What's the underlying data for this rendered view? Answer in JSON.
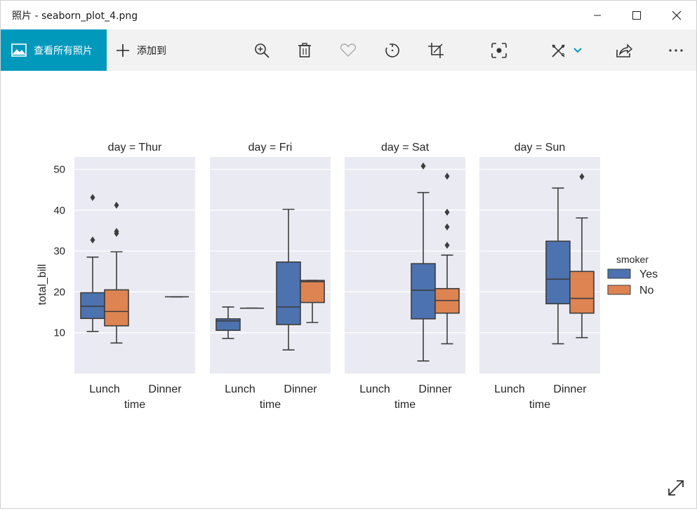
{
  "window": {
    "title": "照片 - seaborn_plot_4.png"
  },
  "titlebar_buttons": {
    "minimize": "minimize-icon",
    "maximize": "maximize-icon",
    "close": "close-icon"
  },
  "toolbar": {
    "view_all_label": "查看所有照片",
    "add_to_label": "添加到",
    "icons": [
      "zoom-in-icon",
      "delete-icon",
      "heart-icon",
      "rotate-icon",
      "crop-icon",
      "focus-icon",
      "edit-draw-icon",
      "share-icon",
      "more-icon"
    ]
  },
  "colors": {
    "accent": "#0099bc",
    "yes": "#4c72b0",
    "no": "#dd8452",
    "panel_bg": "#eaeaf2",
    "box_line": "#3d3d3d"
  },
  "chart_data": {
    "type": "boxplot",
    "facets": [
      "day = Thur",
      "day = Fri",
      "day = Sat",
      "day = Sun"
    ],
    "x_categories": [
      "Lunch",
      "Dinner"
    ],
    "xlabel": "time",
    "ylabel": "total_bill",
    "yticks": [
      10,
      20,
      30,
      40,
      50
    ],
    "ylim": [
      0,
      53
    ],
    "legend": {
      "title": "smoker",
      "entries": [
        "Yes",
        "No"
      ],
      "placement": "right"
    },
    "boxes": [
      {
        "facet": 0,
        "time": "Lunch",
        "smoker": "Yes",
        "whisker_low": 10.3,
        "q1": 13.5,
        "median": 16.5,
        "q3": 19.8,
        "whisker_high": 28.5,
        "outliers": [
          32.7,
          43.1
        ]
      },
      {
        "facet": 0,
        "time": "Lunch",
        "smoker": "No",
        "whisker_low": 7.5,
        "q1": 11.7,
        "median": 15.2,
        "q3": 20.5,
        "whisker_high": 29.8,
        "outliers": [
          34.3,
          34.8,
          41.2
        ]
      },
      {
        "facet": 0,
        "time": "Dinner",
        "smoker": "No",
        "whisker_low": 18.8,
        "q1": 18.8,
        "median": 18.8,
        "q3": 18.8,
        "whisker_high": 18.8,
        "outliers": []
      },
      {
        "facet": 1,
        "time": "Lunch",
        "smoker": "Yes",
        "whisker_low": 8.6,
        "q1": 10.6,
        "median": 12.9,
        "q3": 13.4,
        "whisker_high": 16.3,
        "outliers": []
      },
      {
        "facet": 1,
        "time": "Lunch",
        "smoker": "No",
        "whisker_low": 16.0,
        "q1": 16.0,
        "median": 16.0,
        "q3": 16.0,
        "whisker_high": 16.0,
        "outliers": []
      },
      {
        "facet": 1,
        "time": "Dinner",
        "smoker": "Yes",
        "whisker_low": 5.8,
        "q1": 12.0,
        "median": 16.3,
        "q3": 27.3,
        "whisker_high": 40.2,
        "outliers": []
      },
      {
        "facet": 1,
        "time": "Dinner",
        "smoker": "No",
        "whisker_low": 12.5,
        "q1": 17.4,
        "median": 22.5,
        "q3": 22.8,
        "whisker_high": 22.8,
        "outliers": []
      },
      {
        "facet": 2,
        "time": "Dinner",
        "smoker": "Yes",
        "whisker_low": 3.1,
        "q1": 13.4,
        "median": 20.4,
        "q3": 26.9,
        "whisker_high": 44.3,
        "outliers": [
          50.8
        ]
      },
      {
        "facet": 2,
        "time": "Dinner",
        "smoker": "No",
        "whisker_low": 7.3,
        "q1": 14.8,
        "median": 17.9,
        "q3": 20.8,
        "whisker_high": 29.0,
        "outliers": [
          31.4,
          35.9,
          39.5,
          48.3
        ]
      },
      {
        "facet": 3,
        "time": "Dinner",
        "smoker": "Yes",
        "whisker_low": 7.3,
        "q1": 17.1,
        "median": 23.1,
        "q3": 32.4,
        "whisker_high": 45.4,
        "outliers": []
      },
      {
        "facet": 3,
        "time": "Dinner",
        "smoker": "No",
        "whisker_low": 8.8,
        "q1": 14.8,
        "median": 18.4,
        "q3": 25.0,
        "whisker_high": 38.1,
        "outliers": [
          48.2
        ]
      }
    ]
  }
}
